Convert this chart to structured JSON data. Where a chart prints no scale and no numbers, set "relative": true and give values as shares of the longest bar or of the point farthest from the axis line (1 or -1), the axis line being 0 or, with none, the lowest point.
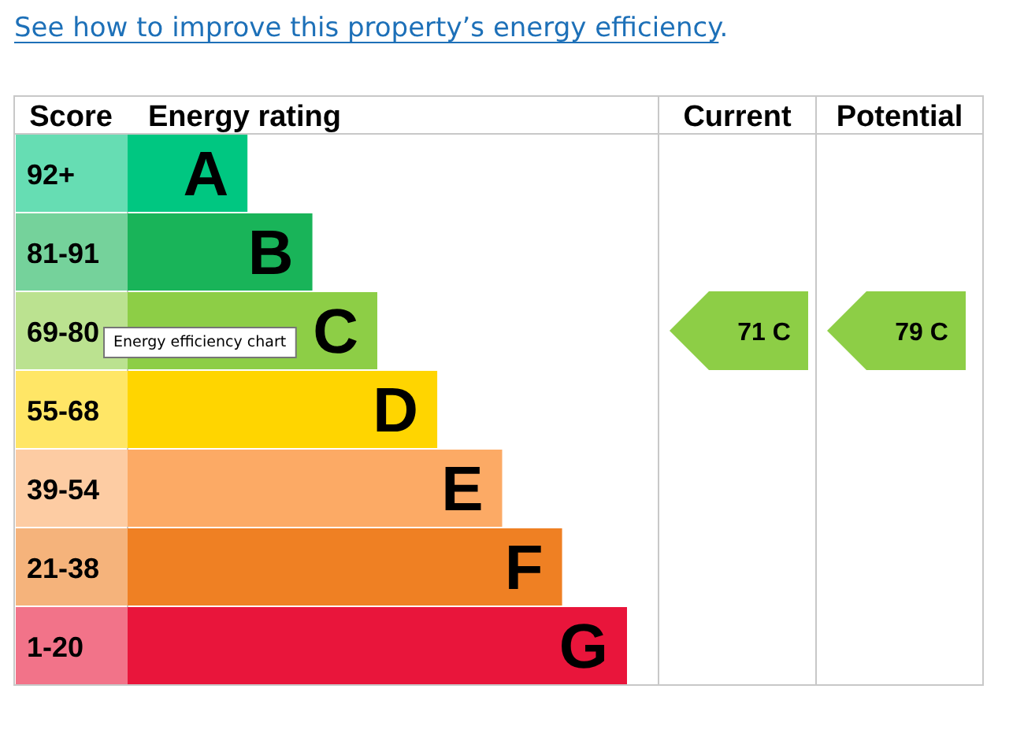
{
  "chart_data": {
    "type": "bar",
    "orientation": "horizontal",
    "relative": true,
    "title": "Energy rating",
    "ylabel": "Score",
    "categories": [
      "A",
      "B",
      "C",
      "D",
      "E",
      "F",
      "G"
    ],
    "values": [
      0.24,
      0.37,
      0.5,
      0.62,
      0.75,
      0.87,
      1
    ],
    "colors": [
      "#00c781",
      "#19b459",
      "#8dce46",
      "#ffd500",
      "#fcaa65",
      "#ef8023",
      "#e9153b"
    ],
    "annotations": [
      "See how to improve this property’s energy efficiency.",
      "Current",
      "Potential",
      "71 C",
      "79 C",
      "Energy efficiency chart",
      "92+",
      "81-91",
      "69-80",
      "55-68",
      "39-54",
      "21-38",
      "1-20"
    ]
  }
}
